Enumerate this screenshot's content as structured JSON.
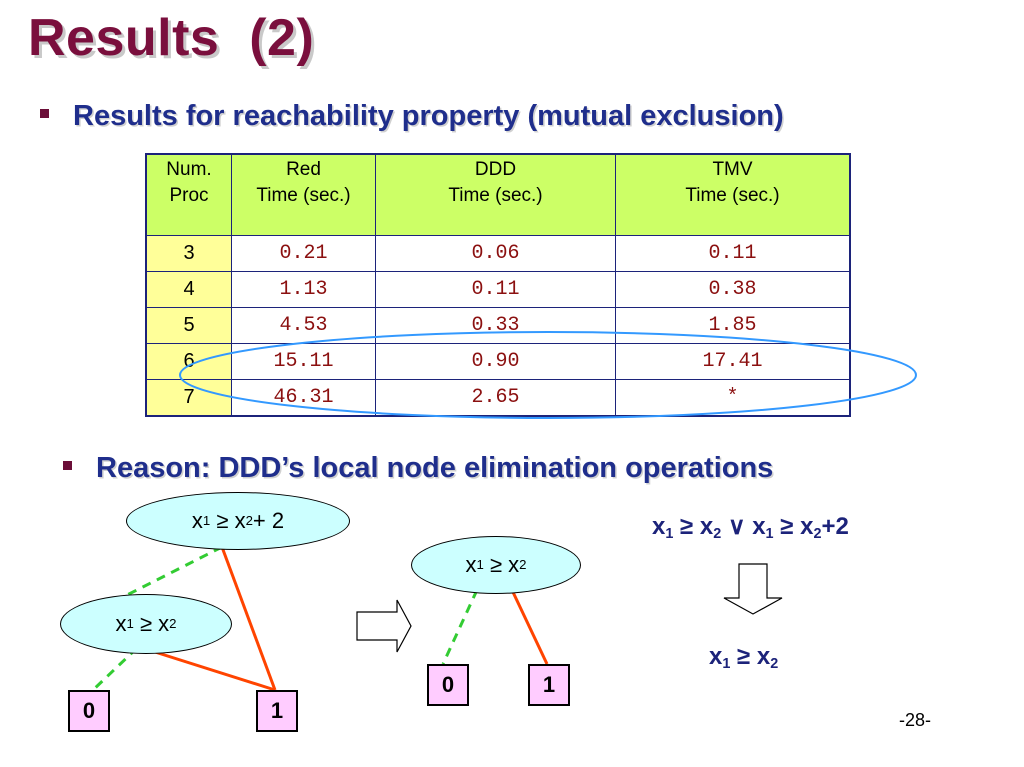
{
  "title": "Results  (2)",
  "bullet1": "Results for reachability property (mutual exclusion)",
  "bullet2": "Reason: DDD’s local node elimination operations",
  "table": {
    "headers": [
      {
        "line1": "Num.",
        "line2": "Proc"
      },
      {
        "line1": "Red",
        "line2": "Time (sec.)"
      },
      {
        "line1": "DDD",
        "line2": "Time (sec.)"
      },
      {
        "line1": "TMV",
        "line2": "Time (sec.)"
      }
    ],
    "rows": [
      [
        "3",
        "0.21",
        "0.06",
        "0.11"
      ],
      [
        "4",
        "1.13",
        "0.11",
        "0.38"
      ],
      [
        "5",
        "4.53",
        "0.33",
        "1.85"
      ],
      [
        "6",
        "15.11",
        "0.90",
        "17.41"
      ],
      [
        "7",
        "46.31",
        "2.65",
        "*"
      ]
    ]
  },
  "diagram": {
    "left": {
      "root": {
        "var1": "x",
        "sub1": "1",
        "op": "≥",
        "var2": "x",
        "sub2": "2",
        "rest": " + 2"
      },
      "child": {
        "var1": "x",
        "sub1": "1",
        "op": "≥",
        "var2": "x",
        "sub2": "2"
      },
      "zero": "0",
      "one": "1"
    },
    "right": {
      "root": {
        "var1": "x",
        "sub1": "1",
        "op": "≥",
        "var2": "x",
        "sub2": "2"
      },
      "zero": "0",
      "one": "1"
    },
    "formula_top": {
      "a": "x",
      "a_sub": "1",
      "op": "≥",
      "b": "x",
      "b_sub": "2",
      "or": "∨",
      "c": "x",
      "c_sub": "1",
      "op2": "≥",
      "d": "x",
      "d_sub": "2",
      "rest": "+2"
    },
    "formula_bottom": {
      "a": "x",
      "a_sub": "1",
      "op": "≥",
      "b": "x",
      "b_sub": "2"
    }
  },
  "page_number": "-28-",
  "colors": {
    "title": "#7a0f3d",
    "bullet": "#1f2e8c",
    "header_bg": "#ccff66",
    "numproc_bg": "#ffff99",
    "node_bg": "#ccffff",
    "terminal_bg": "#ffccff",
    "ellipse": "#3399ff",
    "solid_edge": "#ff4400",
    "dashed_edge": "#33cc33"
  }
}
